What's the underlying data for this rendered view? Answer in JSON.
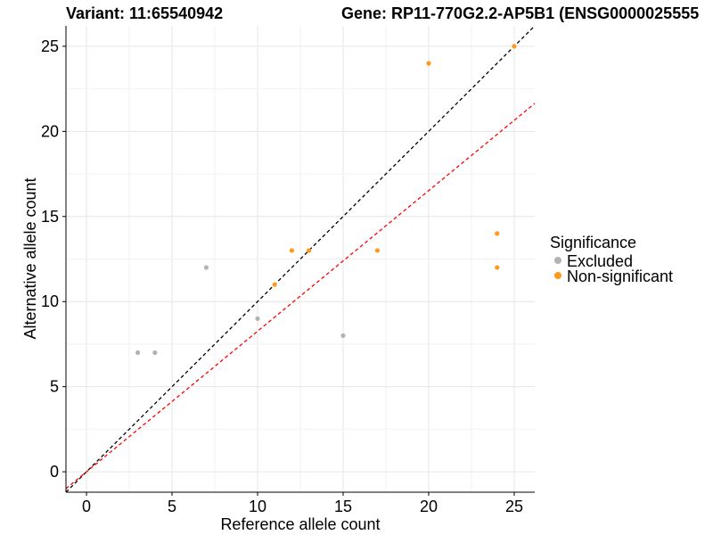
{
  "chart_data": {
    "type": "scatter",
    "title_left": "Variant: 11:65540942",
    "title_right": "Gene: RP11-770G2.2-AP5B1 (ENSG0000025555",
    "xlabel": "Reference allele count",
    "ylabel": "Alternative allele count",
    "xlim": [
      -1.2,
      26.2
    ],
    "ylim": [
      -1.2,
      26.2
    ],
    "xticks": [
      0,
      5,
      10,
      15,
      20,
      25
    ],
    "yticks": [
      0,
      5,
      10,
      15,
      20,
      25
    ],
    "grid": true,
    "legend": {
      "title": "Significance",
      "position": "right"
    },
    "series": [
      {
        "name": "Excluded",
        "color": "#b3b3b3",
        "points": [
          {
            "x": 3,
            "y": 7
          },
          {
            "x": 4,
            "y": 7
          },
          {
            "x": 7,
            "y": 12
          },
          {
            "x": 10,
            "y": 9
          },
          {
            "x": 15,
            "y": 8
          }
        ]
      },
      {
        "name": "Non-significant",
        "color": "#ff9a1a",
        "points": [
          {
            "x": 11,
            "y": 11
          },
          {
            "x": 12,
            "y": 13
          },
          {
            "x": 13,
            "y": 13
          },
          {
            "x": 17,
            "y": 13
          },
          {
            "x": 20,
            "y": 24
          },
          {
            "x": 24,
            "y": 14
          },
          {
            "x": 24,
            "y": 12
          },
          {
            "x": 25,
            "y": 25
          }
        ]
      }
    ],
    "reference_lines": [
      {
        "name": "identity",
        "slope": 1.0,
        "color": "#000000",
        "style": "dashed"
      },
      {
        "name": "fit",
        "slope": 0.826,
        "color": "#ff0000",
        "style": "dashed"
      }
    ]
  }
}
